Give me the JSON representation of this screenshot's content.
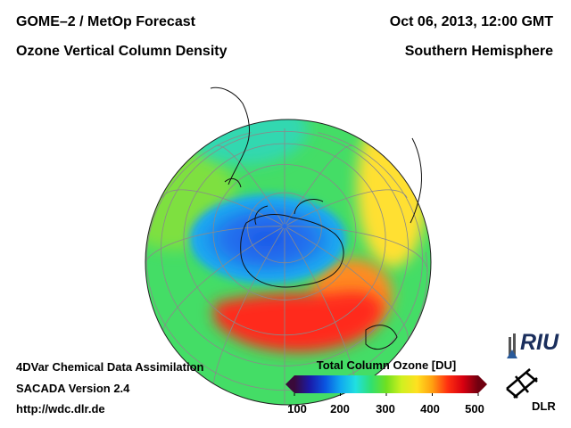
{
  "header": {
    "title_line1": "GOME–2 / MetOp Forecast",
    "title_line2": "Ozone Vertical Column Density",
    "date": "Oct 06, 2013, 12:00 GMT",
    "region": "Southern Hemisphere"
  },
  "footer": {
    "line1": "4DVar Chemical Data Assimilation",
    "line2": "SACADA Version 2.4",
    "url": "http://wdc.dlr.de"
  },
  "colorbar": {
    "title": "Total Column Ozone [DU]",
    "ticks": [
      "100",
      "200",
      "300",
      "400",
      "500"
    ],
    "min": 100,
    "max": 500,
    "colors": [
      "#3a0a3a",
      "#1a1aa8",
      "#0a55e0",
      "#10a8f0",
      "#20e0e0",
      "#30e070",
      "#70e020",
      "#d0f020",
      "#ffe020",
      "#ffa010",
      "#ff3010",
      "#d80010",
      "#700010"
    ]
  },
  "map": {
    "projection": "orthographic-south-pole",
    "ozone_hole_value_du": 170,
    "max_ring_value_du": 420,
    "background_value_du": 300,
    "colors": {
      "hole_core": "#1e58e8",
      "hole_edge": "#1aa8f0",
      "background": "#44dd66",
      "high": "#ff2a1a",
      "mid_high": "#ffe030",
      "coast": "#111111",
      "graticule": "#8a8a8a"
    }
  },
  "logos": {
    "riu": "RIU",
    "dlr": "DLR"
  }
}
